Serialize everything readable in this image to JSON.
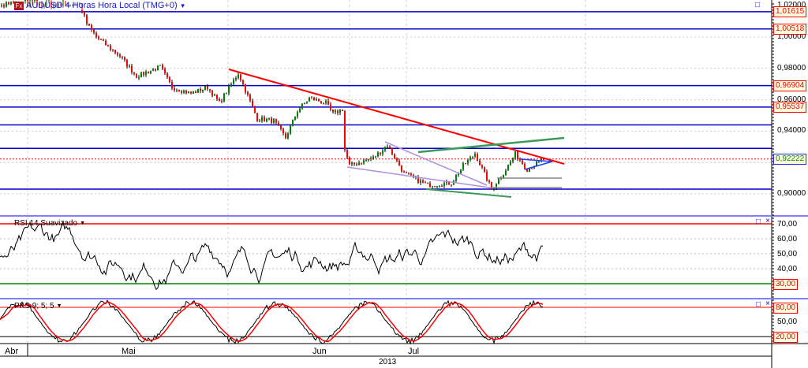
{
  "header": {
    "title": "AUDUSD 4 Horas Hora Local (TMG+0)",
    "dropdown_icon": "caret-down-icon",
    "logo": "Fx"
  },
  "price_axis": {
    "ticks": [
      "1,02000",
      "1,00000",
      "0,98000",
      "0,96000",
      "0,94000",
      "0,90000"
    ],
    "tick_values": [
      1.02,
      1.0,
      0.98,
      0.96,
      0.94,
      0.9
    ],
    "level_tags": [
      {
        "label": "1,01615",
        "value": 1.01615
      },
      {
        "label": "1,00518",
        "value": 1.00518
      },
      {
        "label": "0,96904",
        "value": 0.96904
      },
      {
        "label": "0,95537",
        "value": 0.95537
      }
    ],
    "current_price": {
      "label": "0,92222",
      "value": 0.92222
    },
    "extra_levels": [
      0.944,
      0.929,
      0.903
    ]
  },
  "rsi": {
    "label": "RSI 14 Suavizado",
    "ticks": [
      "70,00",
      "60,00",
      "50,00",
      "40,00"
    ],
    "overbought": "70,00",
    "oversold": "30,00"
  },
  "stoch": {
    "label": "PKS 9; 5; 5",
    "ticks": [
      "50,00"
    ],
    "upper": "80,00",
    "lower": "20,00"
  },
  "time_axis": {
    "months": [
      "Abr",
      "Mai",
      "Jun",
      "Jul"
    ],
    "year": "2013"
  },
  "colors": {
    "level_line": "#0000cc",
    "trend_red": "#ff0000",
    "channel_green": "#3a9a5a",
    "wedge_lavender": "#b090e0",
    "bull": "#008000",
    "bear": "#ff0000"
  },
  "buttons": {
    "maximize": "□",
    "close": "×"
  },
  "price_anchors": [
    [
      28,
      1.021
    ],
    [
      33,
      1.021
    ],
    [
      36,
      1.0085
    ],
    [
      40,
      1.0
    ],
    [
      50,
      0.988
    ],
    [
      57,
      0.975
    ],
    [
      67,
      0.981
    ],
    [
      72,
      0.968
    ],
    [
      80,
      0.964
    ],
    [
      87,
      0.968
    ],
    [
      92,
      0.958
    ],
    [
      100,
      0.977
    ],
    [
      108,
      0.948
    ],
    [
      115,
      0.9465
    ],
    [
      120,
      0.9357
    ],
    [
      125,
      0.953
    ],
    [
      130,
      0.961
    ],
    [
      137,
      0.958
    ],
    [
      140,
      0.951
    ],
    [
      144,
      0.954
    ],
    [
      145,
      0.928
    ],
    [
      147,
      0.918
    ],
    [
      157,
      0.923
    ],
    [
      163,
      0.931
    ],
    [
      170,
      0.913
    ],
    [
      180,
      0.9055
    ],
    [
      190,
      0.907
    ],
    [
      195,
      0.918
    ],
    [
      200,
      0.9256
    ],
    [
      207,
      0.903
    ],
    [
      213,
      0.9155
    ],
    [
      217,
      0.9256
    ],
    [
      222,
      0.9156
    ],
    [
      229,
      0.9222
    ]
  ]
}
